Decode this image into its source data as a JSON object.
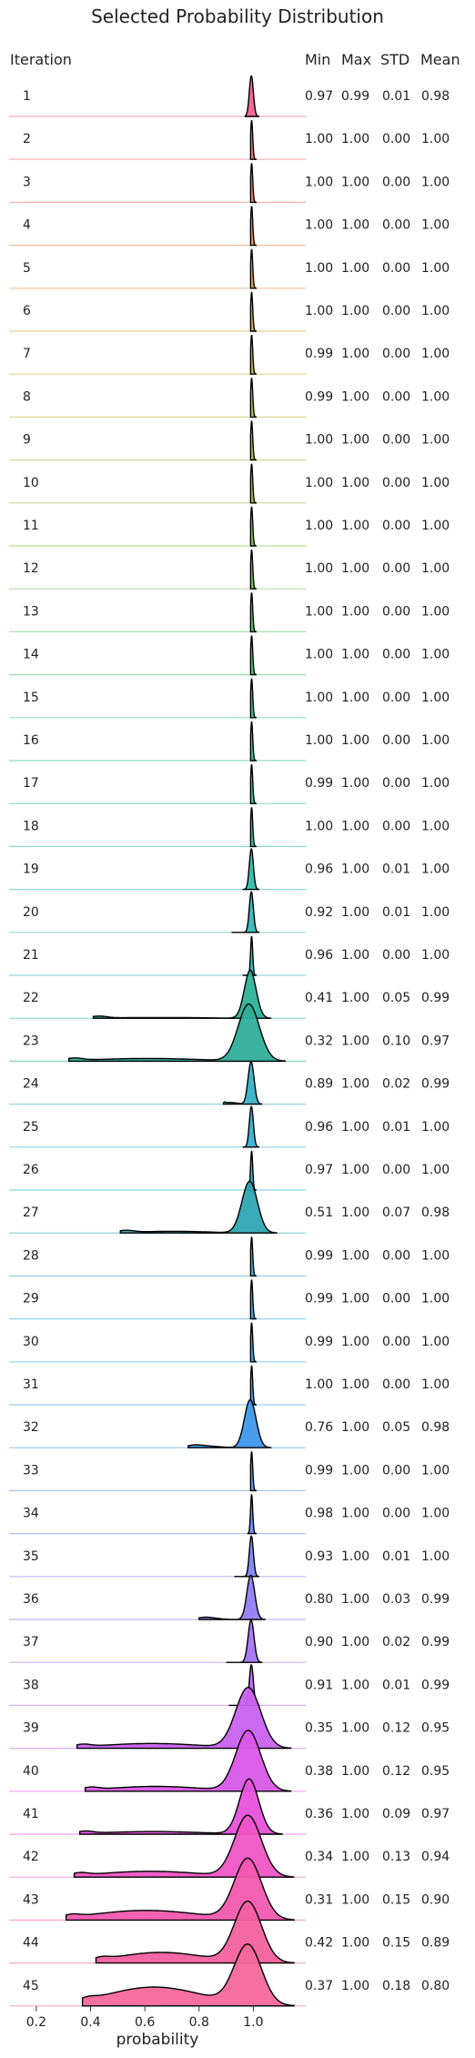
{
  "chart_data": {
    "type": "ridgeline",
    "title": "Selected Probability Distribution",
    "row_header": "Iteration",
    "column_headers": [
      "Min",
      "Max",
      "STD",
      "Mean"
    ],
    "xlabel": "probability",
    "xticks": [
      "0.2",
      "0.4",
      "0.6",
      "0.8",
      "1.0"
    ],
    "xlim": [
      0.15,
      1.2
    ],
    "rows": [
      {
        "iteration": "1",
        "min": "0.97",
        "max": "0.99",
        "std": "0.01",
        "mean": "0.98",
        "color": "#f0628d"
      },
      {
        "iteration": "2",
        "min": "1.00",
        "max": "1.00",
        "std": "0.00",
        "mean": "1.00",
        "color": "#f26e72"
      },
      {
        "iteration": "3",
        "min": "1.00",
        "max": "1.00",
        "std": "0.00",
        "mean": "1.00",
        "color": "#f07a5e"
      },
      {
        "iteration": "4",
        "min": "1.00",
        "max": "1.00",
        "std": "0.00",
        "mean": "1.00",
        "color": "#ec8a52"
      },
      {
        "iteration": "5",
        "min": "1.00",
        "max": "1.00",
        "std": "0.00",
        "mean": "1.00",
        "color": "#e39a45"
      },
      {
        "iteration": "6",
        "min": "1.00",
        "max": "1.00",
        "std": "0.00",
        "mean": "1.00",
        "color": "#d7a83f"
      },
      {
        "iteration": "7",
        "min": "0.99",
        "max": "1.00",
        "std": "0.00",
        "mean": "1.00",
        "color": "#c9b33d"
      },
      {
        "iteration": "8",
        "min": "0.99",
        "max": "1.00",
        "std": "0.00",
        "mean": "1.00",
        "color": "#bab93d"
      },
      {
        "iteration": "9",
        "min": "1.00",
        "max": "1.00",
        "std": "0.00",
        "mean": "1.00",
        "color": "#aabd3f"
      },
      {
        "iteration": "10",
        "min": "1.00",
        "max": "1.00",
        "std": "0.00",
        "mean": "1.00",
        "color": "#98c043"
      },
      {
        "iteration": "11",
        "min": "1.00",
        "max": "1.00",
        "std": "0.00",
        "mean": "1.00",
        "color": "#84c349"
      },
      {
        "iteration": "12",
        "min": "1.00",
        "max": "1.00",
        "std": "0.00",
        "mean": "1.00",
        "color": "#6ec552"
      },
      {
        "iteration": "13",
        "min": "1.00",
        "max": "1.00",
        "std": "0.00",
        "mean": "1.00",
        "color": "#55c65e"
      },
      {
        "iteration": "14",
        "min": "1.00",
        "max": "1.00",
        "std": "0.00",
        "mean": "1.00",
        "color": "#3fc66e"
      },
      {
        "iteration": "15",
        "min": "1.00",
        "max": "1.00",
        "std": "0.00",
        "mean": "1.00",
        "color": "#34c57e"
      },
      {
        "iteration": "16",
        "min": "1.00",
        "max": "1.00",
        "std": "0.00",
        "mean": "1.00",
        "color": "#31c38c"
      },
      {
        "iteration": "17",
        "min": "0.99",
        "max": "1.00",
        "std": "0.00",
        "mean": "1.00",
        "color": "#30c199"
      },
      {
        "iteration": "18",
        "min": "1.00",
        "max": "1.00",
        "std": "0.00",
        "mean": "1.00",
        "color": "#30bea4"
      },
      {
        "iteration": "19",
        "min": "0.96",
        "max": "1.00",
        "std": "0.01",
        "mean": "1.00",
        "color": "#31bcae"
      },
      {
        "iteration": "20",
        "min": "0.92",
        "max": "1.00",
        "std": "0.01",
        "mean": "1.00",
        "color": "#33b9b7"
      },
      {
        "iteration": "21",
        "min": "0.96",
        "max": "1.00",
        "std": "0.00",
        "mean": "1.00",
        "color": "#34b7bf"
      },
      {
        "iteration": "22",
        "min": "0.41",
        "max": "1.00",
        "std": "0.05",
        "mean": "0.99",
        "color": "#2fb29a"
      },
      {
        "iteration": "23",
        "min": "0.32",
        "max": "1.00",
        "std": "0.10",
        "mean": "0.97",
        "color": "#2fae9a"
      },
      {
        "iteration": "24",
        "min": "0.89",
        "max": "1.00",
        "std": "0.02",
        "mean": "0.99",
        "color": "#36b2c8"
      },
      {
        "iteration": "25",
        "min": "0.96",
        "max": "1.00",
        "std": "0.01",
        "mean": "1.00",
        "color": "#37b0cd"
      },
      {
        "iteration": "26",
        "min": "0.97",
        "max": "1.00",
        "std": "0.00",
        "mean": "1.00",
        "color": "#38aed2"
      },
      {
        "iteration": "27",
        "min": "0.51",
        "max": "1.00",
        "std": "0.07",
        "mean": "0.98",
        "color": "#2ea6b4"
      },
      {
        "iteration": "28",
        "min": "0.99",
        "max": "1.00",
        "std": "0.00",
        "mean": "1.00",
        "color": "#3aa9dc"
      },
      {
        "iteration": "29",
        "min": "0.99",
        "max": "1.00",
        "std": "0.00",
        "mean": "1.00",
        "color": "#3ca6e2"
      },
      {
        "iteration": "30",
        "min": "0.99",
        "max": "1.00",
        "std": "0.00",
        "mean": "1.00",
        "color": "#3fa2e8"
      },
      {
        "iteration": "31",
        "min": "1.00",
        "max": "1.00",
        "std": "0.00",
        "mean": "1.00",
        "color": "#449eee"
      },
      {
        "iteration": "32",
        "min": "0.76",
        "max": "1.00",
        "std": "0.05",
        "mean": "0.98",
        "color": "#3d97ea"
      },
      {
        "iteration": "33",
        "min": "0.99",
        "max": "1.00",
        "std": "0.00",
        "mean": "1.00",
        "color": "#5a93f4"
      },
      {
        "iteration": "34",
        "min": "0.98",
        "max": "1.00",
        "std": "0.00",
        "mean": "1.00",
        "color": "#6c8cf6"
      },
      {
        "iteration": "35",
        "min": "0.93",
        "max": "1.00",
        "std": "0.01",
        "mean": "1.00",
        "color": "#7f85f7"
      },
      {
        "iteration": "36",
        "min": "0.80",
        "max": "1.00",
        "std": "0.03",
        "mean": "0.99",
        "color": "#927df6"
      },
      {
        "iteration": "37",
        "min": "0.90",
        "max": "1.00",
        "std": "0.02",
        "mean": "0.99",
        "color": "#a575f5"
      },
      {
        "iteration": "38",
        "min": "0.91",
        "max": "1.00",
        "std": "0.01",
        "mean": "0.99",
        "color": "#b76cf3"
      },
      {
        "iteration": "39",
        "min": "0.35",
        "max": "1.00",
        "std": "0.12",
        "mean": "0.95",
        "color": "#c862ef"
      },
      {
        "iteration": "40",
        "min": "0.38",
        "max": "1.00",
        "std": "0.12",
        "mean": "0.95",
        "color": "#d959e9"
      },
      {
        "iteration": "41",
        "min": "0.36",
        "max": "1.00",
        "std": "0.09",
        "mean": "0.97",
        "color": "#e652da"
      },
      {
        "iteration": "42",
        "min": "0.34",
        "max": "1.00",
        "std": "0.13",
        "mean": "0.94",
        "color": "#ef55c4"
      },
      {
        "iteration": "43",
        "min": "0.31",
        "max": "1.00",
        "std": "0.15",
        "mean": "0.90",
        "color": "#f25aae"
      },
      {
        "iteration": "44",
        "min": "0.42",
        "max": "1.00",
        "std": "0.15",
        "mean": "0.89",
        "color": "#f3609e"
      },
      {
        "iteration": "45",
        "min": "0.37",
        "max": "1.00",
        "std": "0.18",
        "mean": "0.80",
        "color": "#f4689a"
      }
    ]
  }
}
